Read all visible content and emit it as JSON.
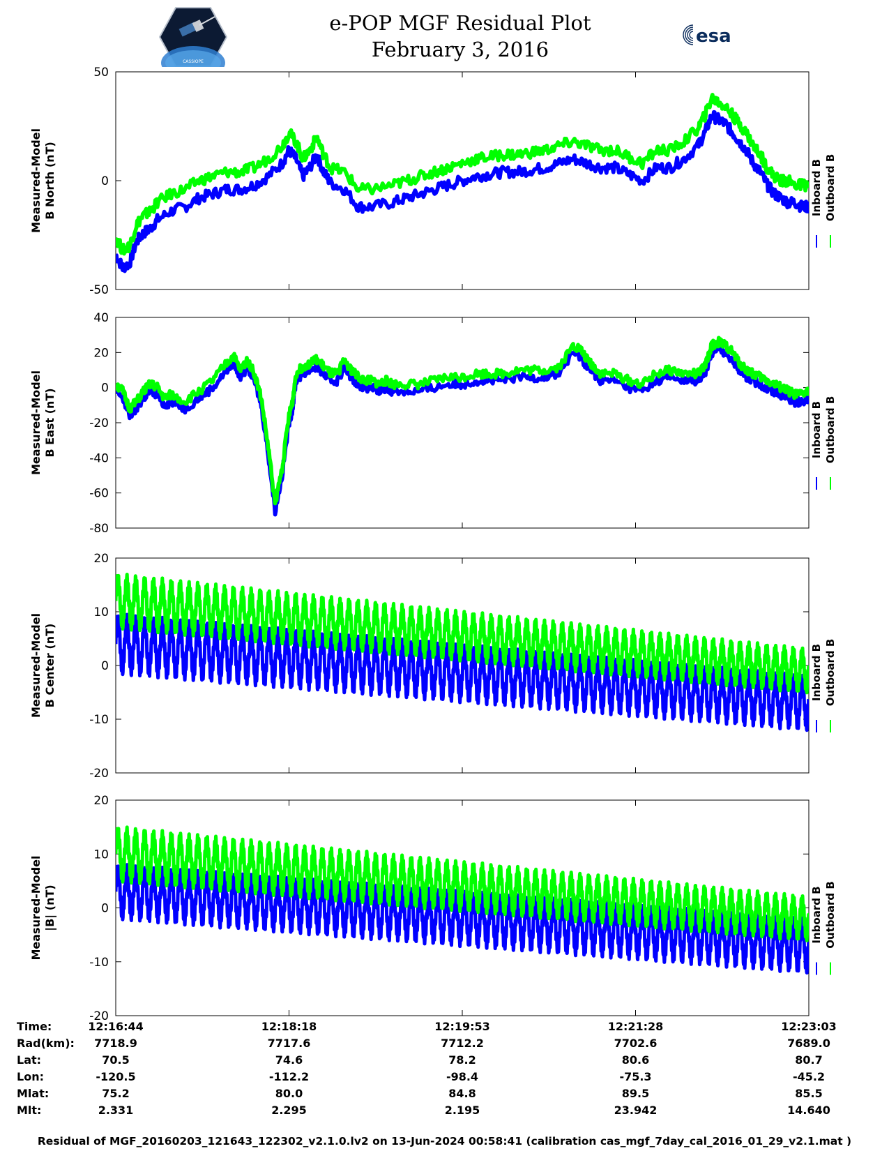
{
  "header": {
    "title_line1": "e-POP MGF Residual Plot",
    "title_line2": "February 3, 2016",
    "logo_left_text": "CASSIOPE",
    "logo_right_text": "esa"
  },
  "colors": {
    "inboard": "#0000ff",
    "outboard": "#00ff00"
  },
  "chart_data": [
    {
      "type": "line",
      "ylabel_line1": "Measured-Model",
      "ylabel_line2": "B North (nT)",
      "ylim": [
        -50,
        50
      ],
      "yticks": [
        -50,
        0,
        50
      ],
      "xlim": [
        0,
        100
      ],
      "legend": "right",
      "series": [
        {
          "name": "Inboard B",
          "color": "#0000ff",
          "x": [
            0,
            1,
            2,
            3,
            4,
            5,
            6,
            8,
            10,
            12,
            14,
            16,
            18,
            20,
            22,
            24,
            25,
            26,
            27,
            28,
            29,
            30,
            31,
            33,
            35,
            37,
            40,
            42,
            44,
            46,
            48,
            50,
            52,
            54,
            56,
            58,
            60,
            62,
            64,
            66,
            68,
            70,
            72,
            74,
            76,
            78,
            80,
            82,
            84,
            85,
            86,
            87,
            88,
            89,
            90,
            91,
            92,
            93,
            94,
            95,
            96,
            97,
            98,
            99,
            100
          ],
          "y": [
            -34,
            -40,
            -38,
            -28,
            -24,
            -22,
            -18,
            -14,
            -12,
            -8,
            -6,
            -4,
            -4,
            -2,
            2,
            8,
            14,
            10,
            2,
            6,
            12,
            4,
            -1,
            -4,
            -12,
            -12,
            -10,
            -8,
            -6,
            -4,
            -2,
            0,
            2,
            3,
            4,
            4,
            5,
            6,
            8,
            10,
            8,
            6,
            6,
            3,
            0,
            6,
            6,
            10,
            16,
            22,
            30,
            28,
            26,
            22,
            18,
            14,
            8,
            4,
            -2,
            -6,
            -8,
            -10,
            -10,
            -12,
            -12
          ]
        },
        {
          "name": "Outboard B",
          "color": "#00ff00",
          "x": [
            0,
            1,
            2,
            3,
            4,
            5,
            6,
            8,
            10,
            12,
            14,
            16,
            18,
            20,
            22,
            24,
            25,
            26,
            27,
            28,
            29,
            30,
            31,
            33,
            35,
            37,
            40,
            42,
            44,
            46,
            48,
            50,
            52,
            54,
            56,
            58,
            60,
            62,
            64,
            66,
            68,
            70,
            72,
            74,
            76,
            78,
            80,
            82,
            84,
            85,
            86,
            87,
            88,
            89,
            90,
            91,
            92,
            93,
            94,
            95,
            96,
            97,
            98,
            99,
            100
          ],
          "y": [
            -26,
            -32,
            -30,
            -20,
            -16,
            -14,
            -10,
            -6,
            -4,
            0,
            2,
            4,
            4,
            6,
            10,
            16,
            22,
            18,
            10,
            14,
            20,
            12,
            6,
            4,
            -4,
            -4,
            -2,
            0,
            2,
            4,
            6,
            8,
            10,
            11,
            12,
            12,
            13,
            14,
            16,
            18,
            16,
            14,
            14,
            11,
            8,
            14,
            14,
            18,
            24,
            30,
            38,
            36,
            34,
            30,
            26,
            22,
            16,
            12,
            6,
            2,
            0,
            0,
            -2,
            -2,
            -2
          ]
        }
      ]
    },
    {
      "type": "line",
      "ylabel_line1": "Measured-Model",
      "ylabel_line2": "B East (nT)",
      "ylim": [
        -80,
        40
      ],
      "yticks": [
        -80,
        -60,
        -40,
        -20,
        0,
        20,
        40
      ],
      "xlim": [
        0,
        100
      ],
      "legend": "right",
      "series": [
        {
          "name": "Inboard B",
          "color": "#0000ff",
          "x": [
            0,
            1,
            2,
            3,
            4,
            5,
            6,
            7,
            8,
            10,
            12,
            14,
            16,
            17,
            18,
            19,
            20,
            21,
            22,
            23,
            24,
            25,
            25.5,
            26,
            27,
            28,
            29,
            30,
            31,
            32,
            33,
            34,
            35,
            36,
            37,
            38,
            39,
            40,
            42,
            44,
            46,
            48,
            50,
            52,
            54,
            56,
            58,
            60,
            62,
            64,
            66,
            67,
            68,
            69,
            70,
            72,
            74,
            76,
            78,
            80,
            82,
            84,
            85,
            86,
            87,
            88,
            89,
            90,
            91,
            92,
            93,
            94,
            95,
            96,
            97,
            98,
            99,
            100
          ],
          "y": [
            -2,
            -6,
            -16,
            -12,
            -6,
            -2,
            -4,
            -10,
            -8,
            -12,
            -6,
            0,
            10,
            14,
            6,
            12,
            4,
            -10,
            -38,
            -70,
            -50,
            -20,
            -12,
            4,
            8,
            10,
            12,
            8,
            4,
            4,
            12,
            6,
            2,
            0,
            0,
            -2,
            0,
            -2,
            -2,
            -2,
            0,
            2,
            2,
            4,
            4,
            4,
            6,
            6,
            6,
            8,
            20,
            18,
            12,
            8,
            4,
            4,
            0,
            -2,
            4,
            6,
            4,
            4,
            8,
            20,
            22,
            20,
            16,
            10,
            6,
            4,
            2,
            0,
            -2,
            -4,
            -6,
            -8,
            -8,
            -6
          ]
        },
        {
          "name": "Outboard B",
          "color": "#00ff00",
          "x": [
            0,
            1,
            2,
            3,
            4,
            5,
            6,
            7,
            8,
            10,
            12,
            14,
            16,
            17,
            18,
            19,
            20,
            21,
            22,
            23,
            24,
            25,
            25.5,
            26,
            27,
            28,
            29,
            30,
            31,
            32,
            33,
            34,
            35,
            36,
            37,
            38,
            39,
            40,
            42,
            44,
            46,
            48,
            50,
            52,
            54,
            56,
            58,
            60,
            62,
            64,
            66,
            67,
            68,
            69,
            70,
            72,
            74,
            76,
            78,
            80,
            82,
            84,
            85,
            86,
            87,
            88,
            89,
            90,
            91,
            92,
            93,
            94,
            95,
            96,
            97,
            98,
            99,
            100
          ],
          "y": [
            2,
            -2,
            -12,
            -8,
            -2,
            2,
            0,
            -6,
            -4,
            -8,
            -2,
            4,
            14,
            18,
            10,
            16,
            8,
            -6,
            -34,
            -66,
            -46,
            -16,
            -8,
            8,
            12,
            14,
            16,
            12,
            8,
            8,
            16,
            10,
            6,
            4,
            4,
            2,
            4,
            2,
            2,
            2,
            4,
            6,
            6,
            8,
            8,
            8,
            10,
            10,
            10,
            12,
            24,
            22,
            16,
            12,
            8,
            8,
            4,
            2,
            8,
            10,
            8,
            8,
            12,
            24,
            26,
            24,
            20,
            14,
            10,
            8,
            6,
            4,
            2,
            0,
            -2,
            -4,
            -4,
            -2
          ]
        }
      ]
    },
    {
      "type": "line",
      "ylabel_line1": "Measured-Model",
      "ylabel_line2": "B Center (nT)",
      "ylim": [
        -20,
        20
      ],
      "yticks": [
        -20,
        -10,
        0,
        10,
        20
      ],
      "xlim": [
        0,
        100
      ],
      "legend": "right",
      "series": [
        {
          "name": "Inboard B",
          "color": "#0000ff",
          "center": [
            4,
            -7
          ],
          "amplitude": [
            4.5,
            4
          ],
          "cycles": 78
        },
        {
          "name": "Outboard B",
          "color": "#00ff00",
          "center": [
            12,
            -1
          ],
          "amplitude": [
            4,
            3
          ],
          "cycles": 78
        }
      ]
    },
    {
      "type": "line",
      "ylabel_line1": "Measured-Model",
      "ylabel_line2": "|B| (nT)",
      "ylim": [
        -20,
        20
      ],
      "yticks": [
        -20,
        -10,
        0,
        10,
        20
      ],
      "xlim": [
        0,
        100
      ],
      "legend": "right",
      "series": [
        {
          "name": "Inboard B",
          "color": "#0000ff",
          "center": [
            3,
            -7
          ],
          "amplitude": [
            4,
            4
          ],
          "cycles": 78
        },
        {
          "name": "Outboard B",
          "color": "#00ff00",
          "center": [
            10,
            -2
          ],
          "amplitude": [
            4,
            3
          ],
          "cycles": 78
        }
      ]
    }
  ],
  "ephemeris": {
    "columns_x": [
      0,
      25,
      50,
      75,
      100
    ],
    "rows": [
      {
        "label": "Time:",
        "values": [
          "12:16:44",
          "12:18:18",
          "12:19:53",
          "12:21:28",
          "12:23:03"
        ]
      },
      {
        "label": "Rad(km):",
        "values": [
          "7718.9",
          "7717.6",
          "7712.2",
          "7702.6",
          "7689.0"
        ]
      },
      {
        "label": "Lat:",
        "values": [
          "70.5",
          "74.6",
          "78.2",
          "80.6",
          "80.7"
        ]
      },
      {
        "label": "Lon:",
        "values": [
          "-120.5",
          "-112.2",
          "-98.4",
          "-75.3",
          "-45.2"
        ]
      },
      {
        "label": "Mlat:",
        "values": [
          "75.2",
          "80.0",
          "84.8",
          "89.5",
          "85.5"
        ]
      },
      {
        "label": "Mlt:",
        "values": [
          "2.331",
          "2.295",
          "2.195",
          "23.942",
          "14.640"
        ]
      }
    ]
  },
  "footer": "Residual of MGF_20160203_121643_122302_v2.1.0.lv2 on 13-Jun-2024 00:58:41 (calibration cas_mgf_7day_cal_2016_01_29_v2.1.mat )"
}
